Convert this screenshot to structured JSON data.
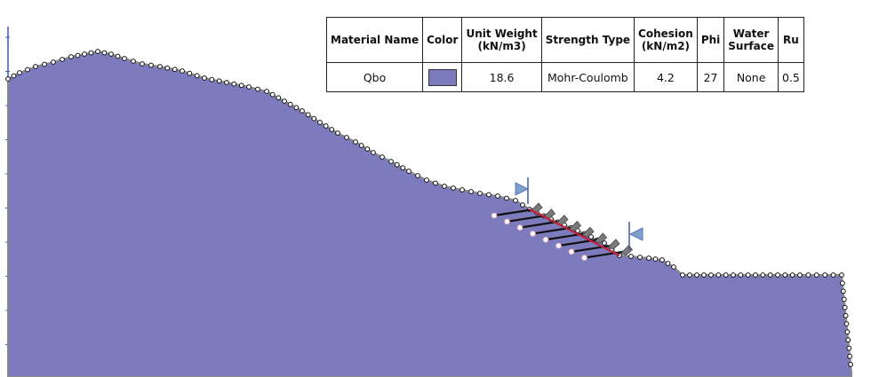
{
  "table": {
    "headers": [
      {
        "line1": "Material Name",
        "line2": ""
      },
      {
        "line1": "Color",
        "line2": ""
      },
      {
        "line1": "Unit Weight",
        "line2": "(kN/m3)"
      },
      {
        "line1": "Strength Type",
        "line2": ""
      },
      {
        "line1": "Cohesion",
        "line2": "(kN/m2)"
      },
      {
        "line1": "Phi",
        "line2": ""
      },
      {
        "line1": "Water",
        "line2": "Surface"
      },
      {
        "line1": "Ru",
        "line2": ""
      }
    ],
    "row": {
      "material_name": "Qbo",
      "color": "#7b7bbd",
      "unit_weight": "18.6",
      "strength_type": "Mohr-Coulomb",
      "cohesion": "4.2",
      "phi": "27",
      "water_surface": "None",
      "ru": "0.5"
    }
  },
  "colors": {
    "material_fill": "#7b7bbd",
    "surface_line": "#8a8a8a",
    "failure_surface": "#c0203a",
    "anchor_line": "#111111",
    "marker": "#7f9fcc"
  }
}
